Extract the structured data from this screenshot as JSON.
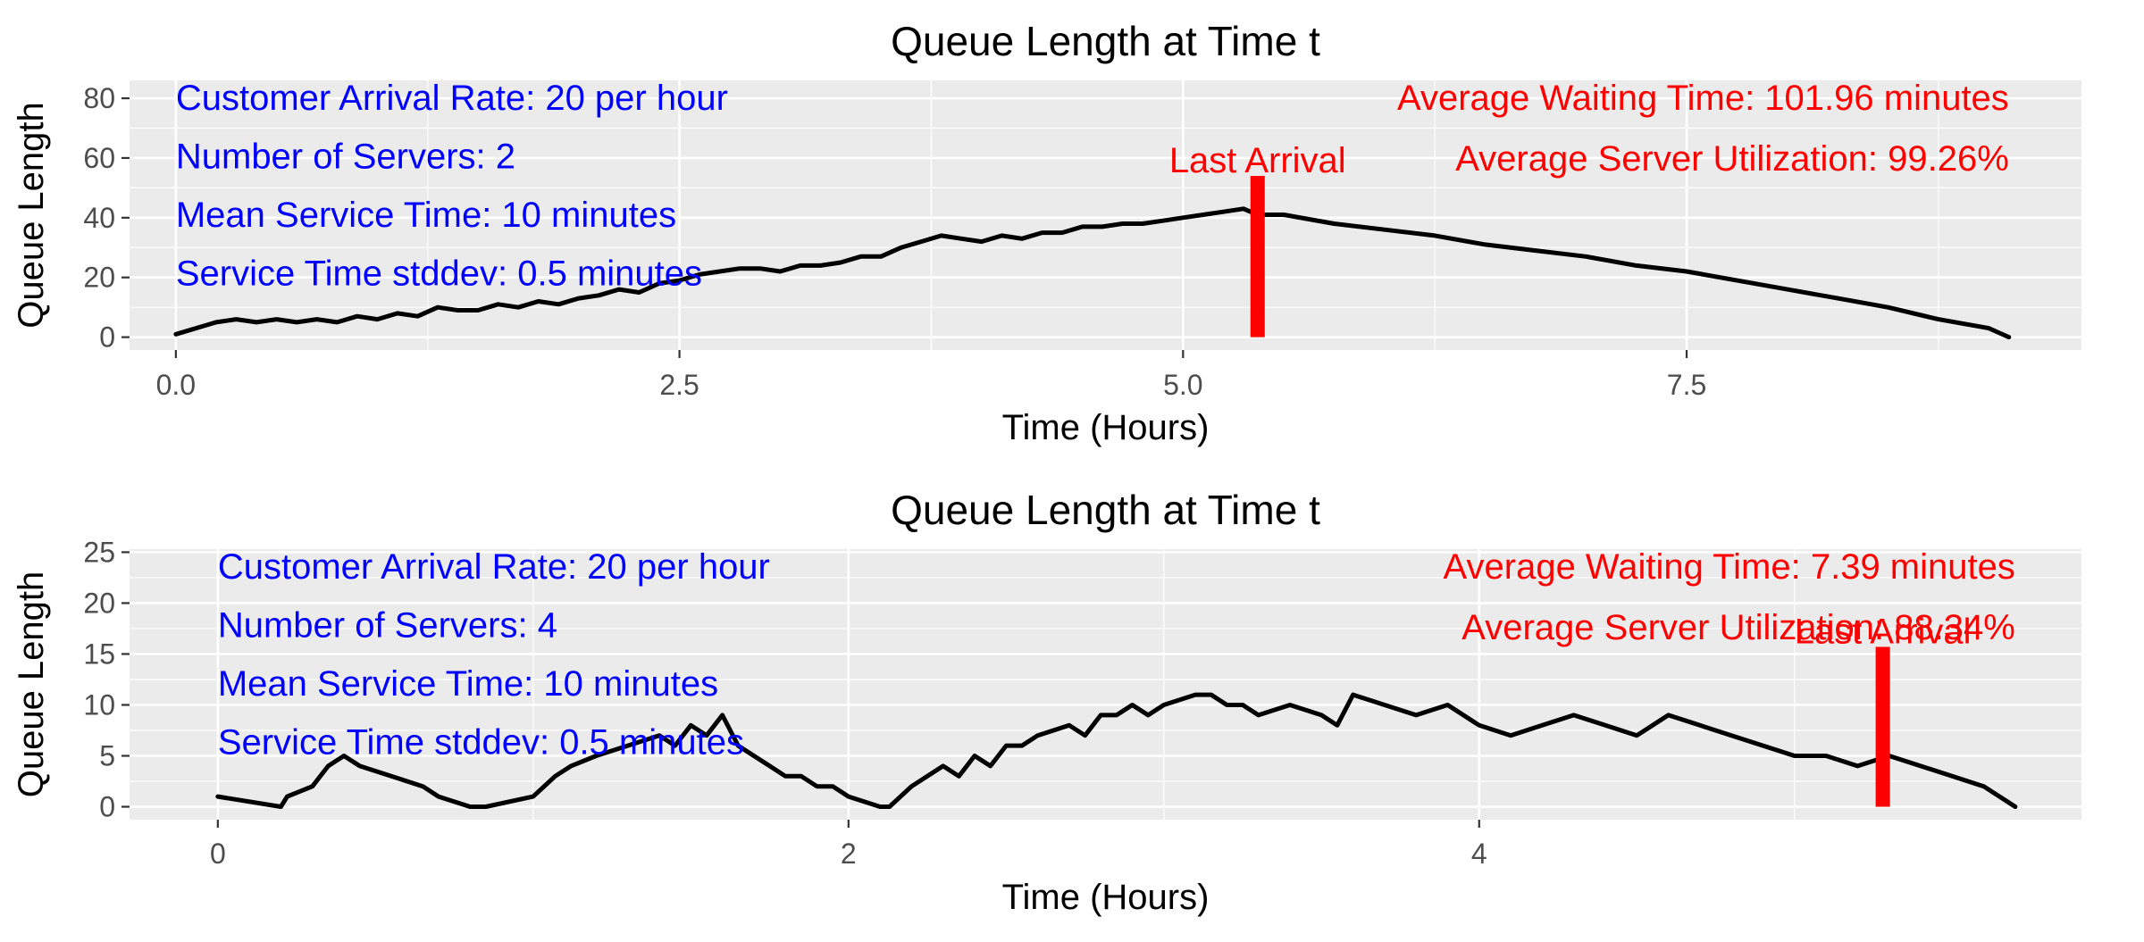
{
  "colors": {
    "panel_bg": "#EBEBEB",
    "grid_major": "#FFFFFF",
    "line": "#000000",
    "info_text": "#0000FF",
    "stats_text": "#FF0000",
    "last_arrival_bar": "#FF0000",
    "tick_text": "#4D4D4D"
  },
  "chart_data": [
    {
      "type": "line",
      "title": "Queue Length at Time t",
      "xlabel": "Time (Hours)",
      "ylabel": "Queue Length",
      "xlim": [
        -0.23,
        9.46
      ],
      "ylim": [
        -4.3,
        86
      ],
      "xticks": [
        0,
        2.5,
        5,
        7.5
      ],
      "xtick_labels": [
        "0.0",
        "2.5",
        "5.0",
        "7.5"
      ],
      "yticks": [
        0,
        20,
        40,
        60,
        80
      ],
      "ytick_labels": [
        "0",
        "20",
        "40",
        "60",
        "80"
      ],
      "grid": true,
      "info": [
        "Customer Arrival Rate: 20 per hour",
        "Number of Servers: 2",
        "Mean Service Time: 10 minutes",
        "Service Time stddev: 0.5 minutes"
      ],
      "stats": [
        "Average Waiting Time: 101.96 minutes",
        "Average Server Utilization: 99.26%"
      ],
      "last_arrival": {
        "label": "Last Arrival",
        "x": 5.37,
        "height": 54
      },
      "series": [
        {
          "x": [
            0.0,
            0.1,
            0.2,
            0.3,
            0.4,
            0.5,
            0.6,
            0.7,
            0.8,
            0.9,
            1.0,
            1.1,
            1.2,
            1.3,
            1.4,
            1.5,
            1.6,
            1.7,
            1.8,
            1.9,
            2.0,
            2.1,
            2.2,
            2.3,
            2.4,
            2.5,
            2.6,
            2.7,
            2.8,
            2.9,
            3.0,
            3.1,
            3.2,
            3.3,
            3.4,
            3.5,
            3.6,
            3.7,
            3.8,
            3.9,
            4.0,
            4.1,
            4.2,
            4.3,
            4.4,
            4.5,
            4.6,
            4.7,
            4.8,
            4.9,
            5.0,
            5.1,
            5.2,
            5.3,
            5.37,
            5.5,
            5.75,
            6.0,
            6.25,
            6.5,
            6.75,
            7.0,
            7.25,
            7.5,
            7.75,
            8.0,
            8.25,
            8.5,
            8.75,
            9.0,
            9.1
          ],
          "values": [
            1,
            3,
            5,
            6,
            5,
            6,
            5,
            6,
            5,
            7,
            6,
            8,
            7,
            10,
            9,
            9,
            11,
            10,
            12,
            11,
            13,
            14,
            16,
            15,
            18,
            19,
            21,
            22,
            23,
            23,
            22,
            24,
            24,
            25,
            27,
            27,
            30,
            32,
            34,
            33,
            32,
            34,
            33,
            35,
            35,
            37,
            37,
            38,
            38,
            39,
            40,
            41,
            42,
            43,
            41,
            41,
            38,
            36,
            34,
            31,
            29,
            27,
            24,
            22,
            19,
            16,
            13,
            10,
            6,
            3,
            0
          ]
        }
      ]
    },
    {
      "type": "line",
      "title": "Queue Length at Time t",
      "xlabel": "Time (Hours)",
      "ylabel": "Queue Length",
      "xlim": [
        -0.28,
        5.91
      ],
      "ylim": [
        -1.27,
        25.3
      ],
      "xticks": [
        0,
        2,
        4
      ],
      "xtick_labels": [
        "0",
        "2",
        "4"
      ],
      "yticks": [
        0,
        5,
        10,
        15,
        20,
        25
      ],
      "ytick_labels": [
        "0",
        "5",
        "10",
        "15",
        "20",
        "25"
      ],
      "grid": true,
      "info": [
        "Customer Arrival Rate: 20 per hour",
        "Number of Servers: 4",
        "Mean Service Time: 10 minutes",
        "Service Time stddev: 0.5 minutes"
      ],
      "stats": [
        "Average Waiting Time: 7.39 minutes",
        "Average Server Utilization: 88.34%"
      ],
      "last_arrival": {
        "label": "Last Arrival",
        "x": 5.28,
        "height": 15.7
      },
      "series": [
        {
          "x": [
            0.0,
            0.2,
            0.22,
            0.3,
            0.35,
            0.4,
            0.45,
            0.55,
            0.65,
            0.7,
            0.8,
            0.85,
            1.0,
            1.07,
            1.12,
            1.2,
            1.3,
            1.4,
            1.45,
            1.5,
            1.55,
            1.6,
            1.65,
            1.7,
            1.75,
            1.8,
            1.85,
            1.9,
            1.95,
            2.0,
            2.1,
            2.13,
            2.2,
            2.3,
            2.35,
            2.4,
            2.45,
            2.5,
            2.55,
            2.6,
            2.7,
            2.75,
            2.8,
            2.85,
            2.9,
            2.95,
            3.0,
            3.1,
            3.15,
            3.2,
            3.25,
            3.3,
            3.4,
            3.5,
            3.55,
            3.6,
            3.7,
            3.8,
            3.9,
            4.0,
            4.1,
            4.2,
            4.3,
            4.4,
            4.5,
            4.6,
            4.7,
            4.8,
            4.9,
            5.0,
            5.1,
            5.2,
            5.3,
            5.4,
            5.5,
            5.6,
            5.7
          ],
          "values": [
            1,
            0,
            1,
            2,
            4,
            5,
            4,
            3,
            2,
            1,
            0,
            0,
            1,
            3,
            4,
            5,
            6,
            7,
            6,
            8,
            7,
            9,
            6,
            5,
            4,
            3,
            3,
            2,
            2,
            1,
            0,
            0,
            2,
            4,
            3,
            5,
            4,
            6,
            6,
            7,
            8,
            7,
            9,
            9,
            10,
            9,
            10,
            11,
            11,
            10,
            10,
            9,
            10,
            9,
            8,
            11,
            10,
            9,
            10,
            8,
            7,
            8,
            9,
            8,
            7,
            9,
            8,
            7,
            6,
            5,
            5,
            4,
            5,
            4,
            3,
            2,
            0
          ]
        }
      ]
    }
  ]
}
